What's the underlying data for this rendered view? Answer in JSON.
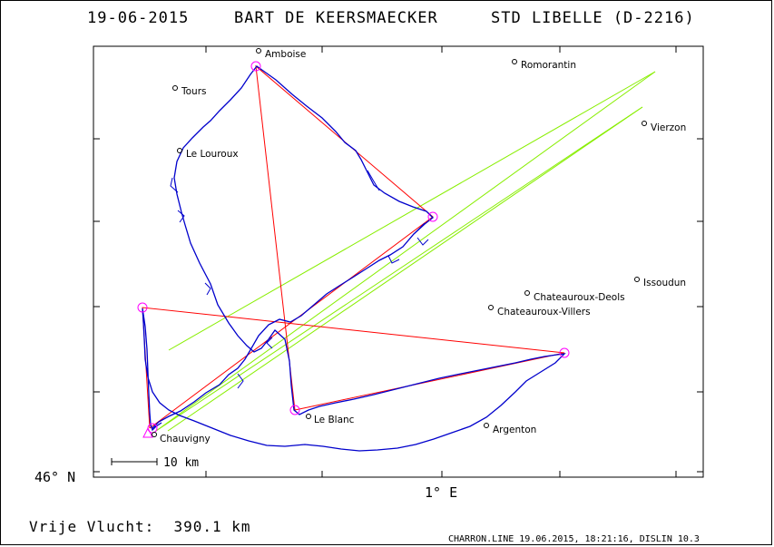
{
  "header": {
    "date": "19-06-2015",
    "pilot": "BART DE KEERSMAECKER",
    "glider": "STD LIBELLE (D-2216)"
  },
  "axes": {
    "lat_label": "46° N",
    "lon_label": "1° E"
  },
  "scale_bar": {
    "label": "10 km"
  },
  "places": [
    {
      "name": "Amboise"
    },
    {
      "name": "Romorantin"
    },
    {
      "name": "Tours"
    },
    {
      "name": "Vierzon"
    },
    {
      "name": "Le Louroux"
    },
    {
      "name": "Issoudun"
    },
    {
      "name": "Chateauroux-Deols"
    },
    {
      "name": "Chateauroux-Villers"
    },
    {
      "name": "Le Blanc"
    },
    {
      "name": "Argenton"
    },
    {
      "name": "Chauvigny"
    }
  ],
  "summary": {
    "distance_text": "Vrije Vlucht:  390.1 km"
  },
  "footer": {
    "text": "CHARRON.LINE 19.06.2015, 18:21:16, DISLIN 10.3"
  },
  "colors": {
    "track": "#0000cc",
    "task": "#ff0000",
    "turnpoint": "#ff00ff",
    "sector": "#88ee00"
  }
}
